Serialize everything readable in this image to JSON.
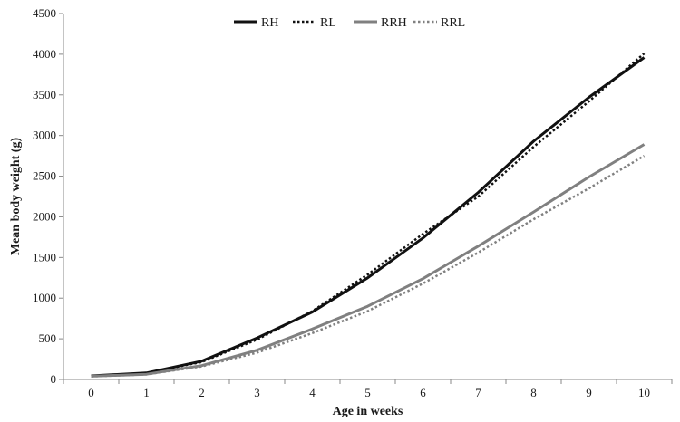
{
  "chart_data": {
    "type": "line",
    "xlabel": "Age in weeks",
    "ylabel": "Mean body weight (g)",
    "x": [
      0,
      1,
      2,
      3,
      4,
      5,
      6,
      7,
      8,
      9,
      10
    ],
    "xlim": [
      0,
      10
    ],
    "ylim": [
      0,
      4500
    ],
    "yticks": [
      0,
      500,
      1000,
      1500,
      2000,
      2500,
      3000,
      3500,
      4000,
      4500
    ],
    "grid": false,
    "legend": "top-center",
    "series": [
      {
        "name": "RH",
        "color": "#111111",
        "style": "solid",
        "values": [
          45,
          80,
          225,
          510,
          830,
          1250,
          1740,
          2300,
          2930,
          3470,
          3960
        ]
      },
      {
        "name": "RL",
        "color": "#111111",
        "style": "dotted",
        "values": [
          42,
          78,
          215,
          490,
          840,
          1290,
          1790,
          2250,
          2860,
          3420,
          4010
        ]
      },
      {
        "name": "RRH",
        "color": "#808080",
        "style": "solid",
        "values": [
          40,
          65,
          170,
          360,
          620,
          900,
          1240,
          1640,
          2060,
          2490,
          2890
        ]
      },
      {
        "name": "RRL",
        "color": "#808080",
        "style": "dotted",
        "values": [
          38,
          62,
          160,
          330,
          570,
          840,
          1180,
          1560,
          1970,
          2350,
          2750
        ]
      }
    ]
  }
}
